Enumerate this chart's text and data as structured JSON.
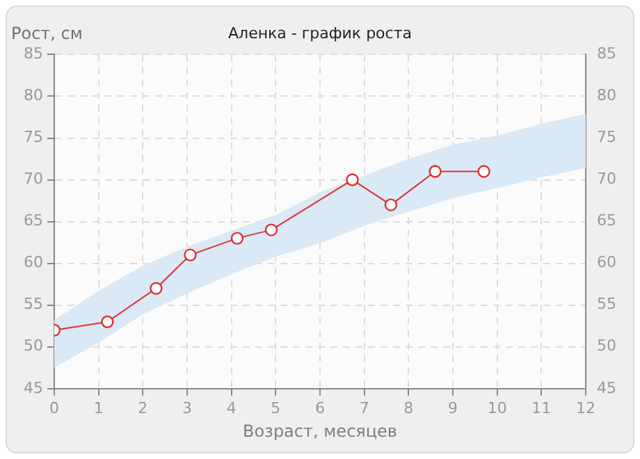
{
  "chart_data": {
    "type": "line",
    "title": "Аленка - график роста",
    "xlabel": "Возраст, месяцев",
    "ylabel": "Рост, см",
    "xlim": [
      0,
      12
    ],
    "xticks": [
      0,
      1,
      2,
      3,
      4,
      5,
      6,
      7,
      8,
      9,
      10,
      11,
      12
    ],
    "ylim": [
      45,
      85
    ],
    "yticks": [
      45,
      50,
      55,
      60,
      65,
      70,
      75,
      80,
      85
    ],
    "y2lim": [
      45,
      85
    ],
    "y2ticks": [
      45,
      50,
      55,
      60,
      65,
      70,
      75,
      80,
      85
    ],
    "grid": true,
    "legend": false,
    "marker": "circle",
    "line_style": "solid",
    "series": [
      {
        "type": "area",
        "color": "#d9e9f5",
        "x": [
          0,
          1,
          2,
          3,
          4,
          5,
          6,
          7,
          8,
          9,
          10,
          11,
          12
        ],
        "values": [
          null,
          null,
          null,
          null,
          null,
          null,
          null,
          null,
          null,
          null,
          null,
          null,
          null
        ],
        "lower": [
          47.5,
          50.5,
          53.9,
          56.4,
          58.7,
          60.8,
          62.4,
          64.5,
          66.2,
          67.8,
          69,
          70.3,
          71.4
        ],
        "upper": [
          53.2,
          56.7,
          59.7,
          62,
          63.9,
          65.8,
          68.5,
          70.5,
          72.5,
          74.2,
          75.3,
          76.7,
          77.9
        ]
      },
      {
        "type": "line",
        "color": "#e03030",
        "x": [
          0,
          1.2,
          2.3,
          3.07,
          4.13,
          4.9,
          6.73,
          7.6,
          8.6,
          9.7
        ],
        "values": [
          52,
          53,
          57,
          61,
          63,
          64,
          70,
          67,
          71,
          71
        ]
      }
    ]
  }
}
